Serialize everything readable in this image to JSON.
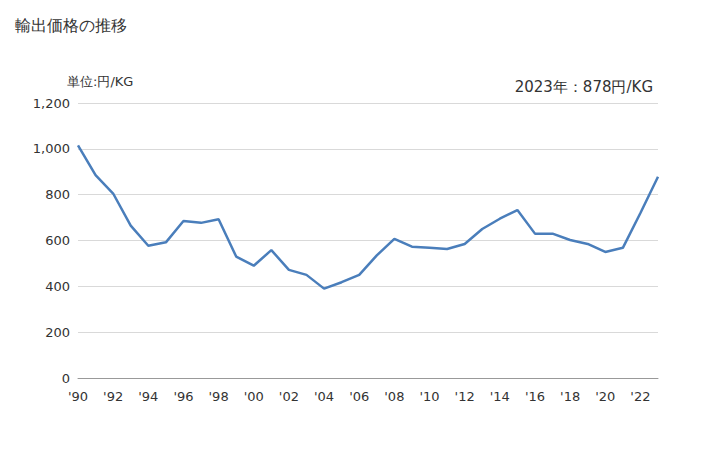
{
  "chart_data": {
    "type": "line",
    "title": "輸出価格の推移",
    "ylabel": "単位:円/KG",
    "annotation": "2023年：878円/KG",
    "categories": [
      "'90",
      null,
      "'92",
      null,
      "'94",
      null,
      "'96",
      null,
      "'98",
      null,
      "'00",
      null,
      "'02",
      null,
      "'04",
      null,
      "'06",
      null,
      "'08",
      null,
      "'10",
      null,
      "'12",
      null,
      "'14",
      null,
      "'16",
      null,
      "'18",
      null,
      "'20",
      null,
      "'22",
      null
    ],
    "values": [
      1015,
      885,
      805,
      665,
      577,
      592,
      685,
      677,
      693,
      530,
      490,
      558,
      472,
      450,
      390,
      418,
      450,
      535,
      607,
      573,
      568,
      563,
      585,
      650,
      695,
      733,
      630,
      630,
      602,
      585,
      550,
      568,
      720,
      878
    ],
    "color": "#4a7ebb",
    "ylim": [
      0,
      1200
    ],
    "yticks": [
      0,
      200,
      400,
      600,
      800,
      {
        "value": 1000,
        "label": "1,000"
      },
      {
        "value": 1200,
        "label": "1,200"
      }
    ],
    "grid": true
  }
}
